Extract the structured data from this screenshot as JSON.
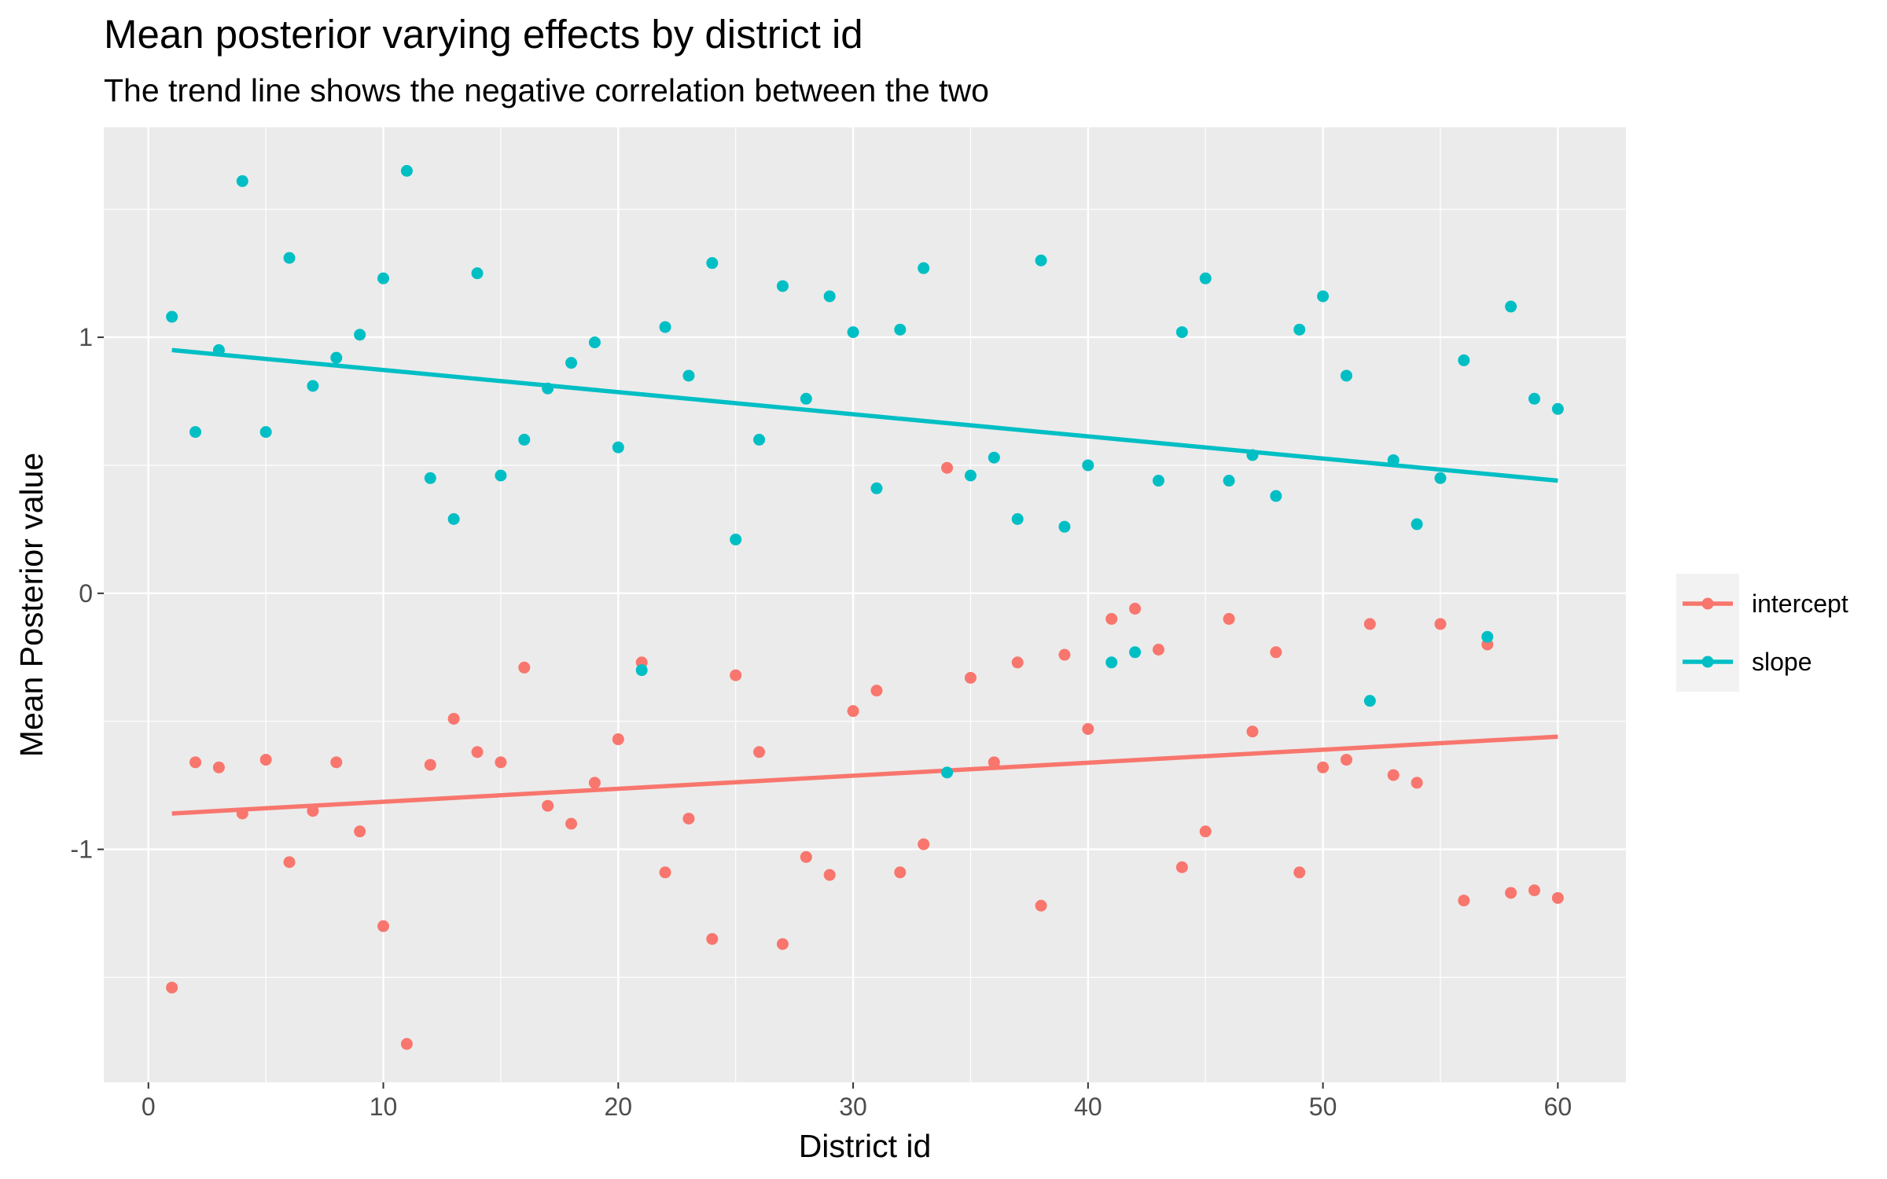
{
  "chart_data": {
    "type": "scatter",
    "title": "Mean posterior varying effects by district id",
    "subtitle": "The trend line shows the negative correlation between the two",
    "xlabel": "District id",
    "ylabel": "Mean Posterior value",
    "xlim": [
      -1.9,
      62.9
    ],
    "ylim": [
      -1.91,
      1.82
    ],
    "x_ticks": [
      0,
      10,
      20,
      30,
      40,
      50,
      60
    ],
    "y_ticks": [
      -1,
      0,
      1
    ],
    "x_tick_labels": [
      "0",
      "10",
      "20",
      "30",
      "40",
      "50",
      "60"
    ],
    "y_tick_labels": [
      "-1",
      "0",
      "1"
    ],
    "grid": true,
    "background": "#EBEBEB",
    "legend_position": "right",
    "series": [
      {
        "name": "intercept",
        "color": "#F8766D",
        "x": [
          1,
          2,
          3,
          4,
          5,
          6,
          7,
          8,
          9,
          10,
          11,
          12,
          13,
          14,
          15,
          16,
          17,
          18,
          19,
          20,
          21,
          22,
          23,
          24,
          25,
          26,
          27,
          28,
          29,
          30,
          31,
          32,
          33,
          34,
          35,
          36,
          37,
          38,
          39,
          40,
          41,
          42,
          43,
          44,
          45,
          46,
          47,
          48,
          49,
          50,
          51,
          52,
          53,
          54,
          55,
          56,
          57,
          58,
          59,
          60
        ],
        "values": [
          -1.54,
          -0.66,
          -0.68,
          -0.86,
          -0.65,
          -1.05,
          -0.85,
          -0.66,
          -0.93,
          -1.3,
          -1.76,
          -0.67,
          -0.49,
          -0.62,
          -0.66,
          -0.29,
          -0.83,
          -0.9,
          -0.74,
          -0.57,
          -0.27,
          -1.09,
          -0.88,
          -1.35,
          -0.32,
          -0.62,
          -1.37,
          -1.03,
          -1.1,
          -0.46,
          -0.38,
          -1.09,
          -0.98,
          0.49,
          -0.33,
          -0.66,
          -0.27,
          -1.22,
          -0.24,
          -0.53,
          -0.1,
          -0.06,
          -0.22,
          -1.07,
          -0.93,
          -0.1,
          -0.54,
          -0.23,
          -1.09,
          -0.68,
          -0.65,
          -0.12,
          -0.71,
          -0.74,
          -0.12,
          -1.2,
          -0.2,
          -1.17,
          -1.16,
          -1.19
        ],
        "trend": {
          "x": [
            1,
            60
          ],
          "y": [
            -0.86,
            -0.56
          ]
        }
      },
      {
        "name": "slope",
        "color": "#00BFC4",
        "x": [
          1,
          2,
          3,
          4,
          5,
          6,
          7,
          8,
          9,
          10,
          11,
          12,
          13,
          14,
          15,
          16,
          17,
          18,
          19,
          20,
          21,
          22,
          23,
          24,
          25,
          26,
          27,
          28,
          29,
          30,
          31,
          32,
          33,
          34,
          35,
          36,
          37,
          38,
          39,
          40,
          41,
          42,
          43,
          44,
          45,
          46,
          47,
          48,
          49,
          50,
          51,
          52,
          53,
          54,
          55,
          56,
          57,
          58,
          59,
          60
        ],
        "values": [
          1.08,
          0.63,
          0.95,
          1.61,
          0.63,
          1.31,
          0.81,
          0.92,
          1.01,
          1.23,
          1.65,
          0.45,
          0.29,
          1.25,
          0.46,
          0.6,
          0.8,
          0.9,
          0.98,
          0.57,
          -0.3,
          1.04,
          0.85,
          1.29,
          0.21,
          0.6,
          1.2,
          0.76,
          1.16,
          1.02,
          0.41,
          1.03,
          1.27,
          -0.7,
          0.46,
          0.53,
          0.29,
          1.3,
          0.26,
          0.5,
          -0.27,
          -0.23,
          0.44,
          1.02,
          1.23,
          0.44,
          0.54,
          0.38,
          1.03,
          1.16,
          0.85,
          -0.42,
          0.52,
          0.27,
          0.45,
          0.91,
          -0.17,
          1.12,
          0.76,
          0.72
        ],
        "trend": {
          "x": [
            1,
            60
          ],
          "y": [
            0.95,
            0.44
          ]
        }
      }
    ]
  }
}
